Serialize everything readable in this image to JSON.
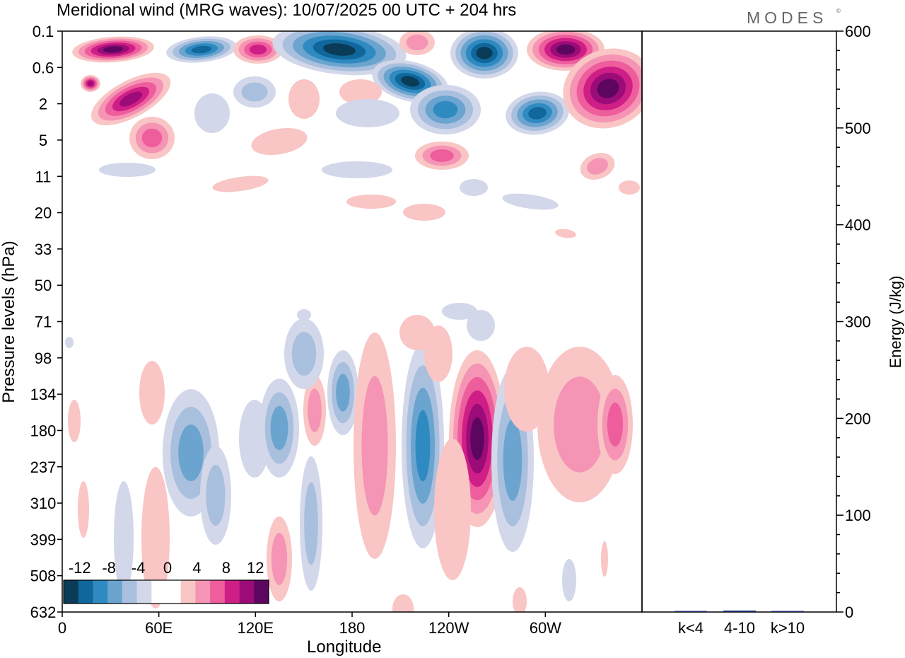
{
  "header": {
    "title": "Meridional wind (MRG waves):  10/07/2025  00 UTC  + 204 hrs",
    "brand": "MODES",
    "brand_mark": "©"
  },
  "chart_data": [
    {
      "type": "heatmap",
      "title": "Meridional wind (MRG waves):  10/07/2025  00 UTC  + 204 hrs",
      "xlabel": "Longitude",
      "ylabel": "Pressure levels (hPa)",
      "x_ticks": [
        "0",
        "60E",
        "120E",
        "180",
        "120W",
        "60W"
      ],
      "y_ticks": [
        "0.1",
        "0.6",
        "2",
        "5",
        "11",
        "20",
        "33",
        "50",
        "71",
        "98",
        "134",
        "180",
        "237",
        "310",
        "399",
        "508",
        "632"
      ],
      "legend": {
        "placement": "bottom-left",
        "labels": [
          "-12",
          "-8",
          "-4",
          "0",
          "4",
          "8",
          "12"
        ],
        "colors": [
          "#0a3b57",
          "#0f679b",
          "#2f8ac1",
          "#6aa4cf",
          "#a8bfdd",
          "#d2d7ea",
          "#ffffff",
          "#ffffff",
          "#f9c5c5",
          "#f594b4",
          "#ee5d9c",
          "#cf1f87",
          "#9c0c78",
          "#5c0660"
        ]
      },
      "blobs_note": ""
    },
    {
      "type": "bar",
      "categories": [
        "k<4",
        "4-10",
        "k>10"
      ],
      "values": [
        0.5,
        1.5,
        0.3
      ],
      "ylabel": "Energy (J/kg)",
      "ylim": [
        0,
        600
      ],
      "y_ticks": [
        "0",
        "100",
        "200",
        "300",
        "400",
        "500",
        "600"
      ],
      "bar_color": "#1a2a6c"
    }
  ]
}
